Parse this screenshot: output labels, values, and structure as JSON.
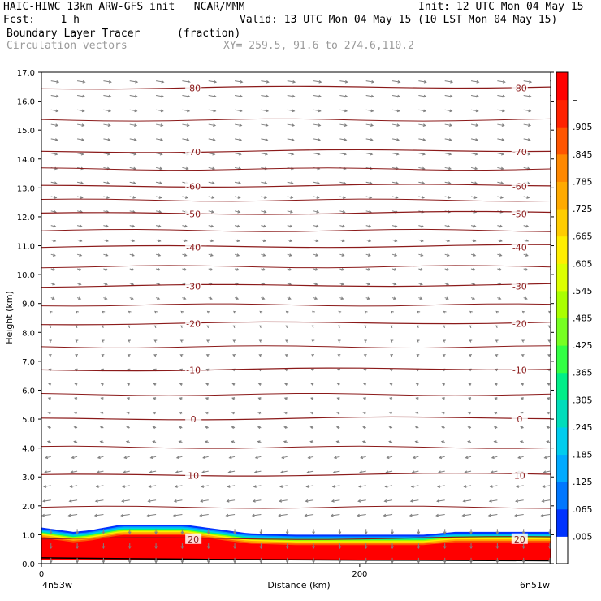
{
  "header": {
    "line1_left": "HAIC-HIWC 13km ARW-GFS init   NCAR/MMM",
    "line1_right": "Init: 12 UTC Mon 04 May 15",
    "line2_left": "Fcst:    1 h",
    "line2_right": "Valid: 13 UTC Mon 04 May 15 (10 LST Mon 04 May 15)",
    "line3_left": "Boundary Layer Tracer",
    "line3_units": "(fraction)",
    "line4_left": "Circulation vectors",
    "line4_right": "XY= 259.5, 91.6 to 274.6,110.2"
  },
  "chart_data": {
    "type": "heatmap",
    "xlabel": "Distance (km)",
    "ylabel": "Height (km)",
    "ylim": [
      0,
      17
    ],
    "xlim": [
      0,
      320
    ],
    "y_ticks": [
      "0.0",
      "1.0",
      "2.0",
      "3.0",
      "4.0",
      "5.0",
      "6.0",
      "7.0",
      "8.0",
      "9.0",
      "10.0",
      "11.0",
      "12.0",
      "13.0",
      "14.0",
      "15.0",
      "16.0",
      "17.0"
    ],
    "x_ticks": [
      {
        "value": 0,
        "label": "0"
      },
      {
        "value": 200,
        "label": "200"
      }
    ],
    "x_endpoints": {
      "left": "4n53w",
      "right": "6n51w"
    },
    "colorbar": {
      "labels": [
        ".005",
        ".065",
        ".125",
        ".185",
        ".245",
        ".305",
        ".365",
        ".425",
        ".485",
        ".545",
        ".605",
        ".665",
        ".725",
        ".785",
        ".845",
        ".905",
        "–"
      ],
      "colors": [
        "#ffffff",
        "#0033ff",
        "#0077ff",
        "#00aaff",
        "#00ccee",
        "#00ddbb",
        "#00ee88",
        "#33ff44",
        "#77ff22",
        "#aaff00",
        "#ddff00",
        "#ffee00",
        "#ffcc00",
        "#ffaa00",
        "#ff8800",
        "#ff5500",
        "#ff2200",
        "#ff0000"
      ]
    },
    "tracer_top_km": [
      [
        0,
        1.25
      ],
      [
        20,
        1.1
      ],
      [
        30,
        1.15
      ],
      [
        50,
        1.35
      ],
      [
        70,
        1.35
      ],
      [
        90,
        1.35
      ],
      [
        110,
        1.2
      ],
      [
        130,
        1.05
      ],
      [
        160,
        1.0
      ],
      [
        200,
        1.0
      ],
      [
        240,
        1.0
      ],
      [
        260,
        1.1
      ],
      [
        290,
        1.1
      ],
      [
        320,
        1.1
      ]
    ],
    "contour_temperature": {
      "levels": [
        20,
        10,
        0,
        -10,
        -20,
        -30,
        -40,
        -50,
        -60,
        -70,
        -80
      ],
      "heights_km": [
        0.85,
        3.05,
        5.0,
        6.7,
        8.3,
        9.6,
        10.95,
        12.1,
        13.05,
        14.25,
        16.45
      ],
      "labels": [
        "20",
        "10",
        "0",
        "-10",
        "-20",
        "-30",
        "-40",
        "-50",
        "-60",
        "-70",
        "-80"
      ]
    },
    "contour_color": "#8b1a1a",
    "vector_color": "#808080"
  }
}
